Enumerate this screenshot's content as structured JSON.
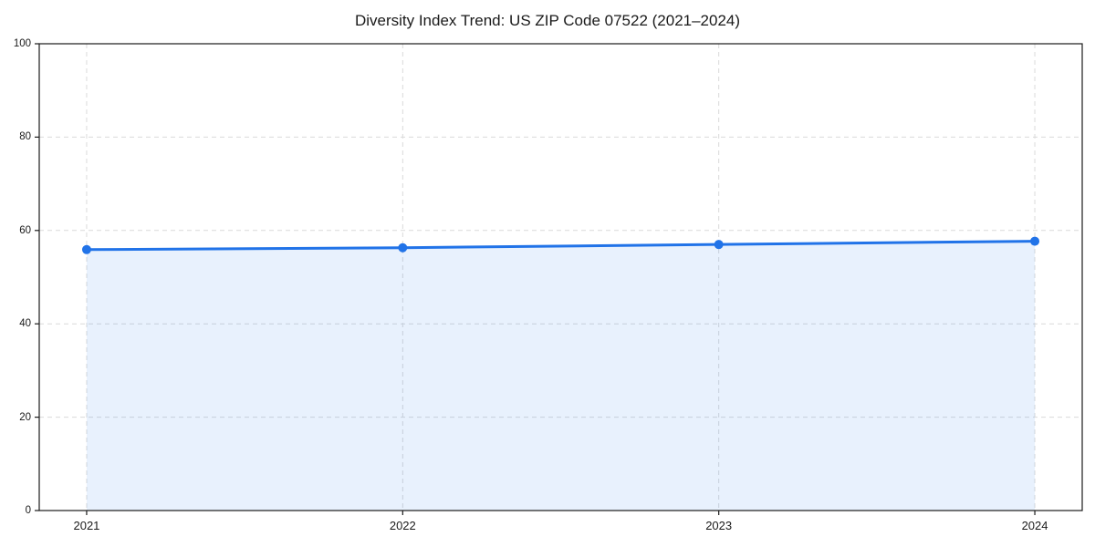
{
  "chart_data": {
    "type": "area",
    "title": "Diversity Index Trend: US ZIP Code 07522 (2021–2024)",
    "x": [
      2021,
      2022,
      2023,
      2024
    ],
    "series": [
      {
        "name": "Diversity Index",
        "values": [
          55.9,
          56.3,
          57.0,
          57.7
        ]
      }
    ],
    "x_tick_labels": [
      "2021",
      "2022",
      "2023",
      "2024"
    ],
    "y_ticks": [
      0,
      20,
      40,
      60,
      80,
      100
    ],
    "xlim": [
      2020.85,
      2024.15
    ],
    "ylim": [
      0,
      100
    ],
    "xlabel": "",
    "ylabel": "",
    "grid": "dashed both axes",
    "legend": "none",
    "colors": {
      "line": "#2173e8",
      "marker": "#2173e8",
      "fill": "rgba(33,115,232,0.10)",
      "grid": "#dadada",
      "spine": "#1a1a1a",
      "text": "#1a1a1a",
      "background": "#ffffff"
    }
  }
}
